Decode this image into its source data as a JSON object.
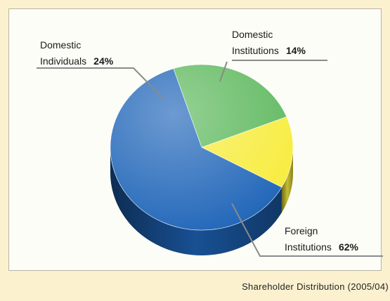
{
  "chart_data": {
    "type": "pie",
    "title": "Shareholder Distribution (2005/04)",
    "categories": [
      "Domestic Individuals",
      "Domestic Institutions",
      "Foreign Institutions"
    ],
    "values": [
      24,
      14,
      62
    ],
    "value_labels": [
      "24%",
      "14%",
      "62%"
    ],
    "colors": [
      "#5cb85c",
      "#f7ec3c",
      "#1e64b8"
    ]
  }
}
